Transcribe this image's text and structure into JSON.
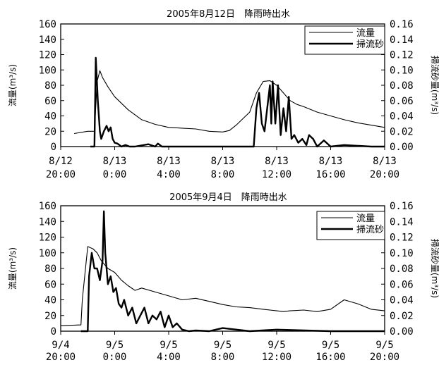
{
  "chart_data": [
    {
      "type": "line",
      "title": "2005年8月12日　降雨時出水",
      "xlabel": "",
      "ylabel": "流量(m³/s)",
      "y2label": "掃流砂量(m³/s)",
      "x_tick_labels": [
        {
          "date": "8/12",
          "time": "20:00"
        },
        {
          "date": "8/13",
          "time": "0:00"
        },
        {
          "date": "8/13",
          "time": "4:00"
        },
        {
          "date": "8/13",
          "time": "8:00"
        },
        {
          "date": "8/13",
          "time": "12:00"
        },
        {
          "date": "8/13",
          "time": "16:00"
        },
        {
          "date": "8/13",
          "time": "20:00"
        }
      ],
      "xlim_hours": [
        0,
        24
      ],
      "ylim": [
        0,
        160
      ],
      "y_ticks": [
        0,
        20,
        40,
        60,
        80,
        100,
        120,
        140,
        160
      ],
      "y2lim": [
        0,
        0.16
      ],
      "y2_ticks": [
        "0.00",
        "0.02",
        "0.04",
        "0.06",
        "0.08",
        "0.10",
        "0.12",
        "0.14",
        "0.16"
      ],
      "legend": {
        "position": "top-right",
        "entries": [
          "流量",
          "掃流砂"
        ]
      },
      "grid": false,
      "series": [
        {
          "name": "流量",
          "axis": "left",
          "x": [
            1.0,
            2.0,
            2.5,
            2.7,
            2.9,
            3.1,
            3.5,
            4.0,
            5.0,
            6.0,
            7.0,
            8.0,
            9.0,
            10.0,
            11.0,
            12.0,
            12.5,
            13.0,
            14.0,
            14.5,
            15.0,
            15.5,
            16.0,
            16.5,
            17.0,
            17.5,
            18.0,
            19.0,
            20.0,
            21.0,
            22.0,
            23.0,
            24.0
          ],
          "values": [
            17,
            20,
            20,
            85,
            99,
            90,
            78,
            65,
            48,
            35,
            29,
            25,
            24,
            23,
            20,
            19,
            21,
            28,
            45,
            70,
            85,
            86,
            80,
            70,
            60,
            55,
            52,
            45,
            40,
            35,
            31,
            28,
            25
          ]
        },
        {
          "name": "掃流砂",
          "axis": "right",
          "x": [
            2.2,
            2.5,
            2.6,
            2.75,
            2.9,
            3.0,
            3.2,
            3.4,
            3.55,
            3.7,
            3.85,
            4.0,
            4.2,
            4.5,
            4.8,
            5.1,
            5.5,
            6.5,
            7.0,
            7.2,
            7.5,
            12.5,
            14.3,
            14.5,
            14.7,
            14.9,
            15.1,
            15.3,
            15.5,
            15.6,
            15.7,
            15.9,
            16.1,
            16.3,
            16.5,
            16.7,
            16.9,
            17.1,
            17.3,
            17.6,
            17.9,
            18.2,
            18.4,
            18.7,
            19.0,
            19.5,
            20.0,
            21.0,
            23.0,
            24.0
          ],
          "values": [
            0,
            0,
            0.116,
            0.06,
            0.02,
            0.01,
            0.02,
            0.027,
            0.02,
            0.025,
            0.01,
            0.005,
            0.004,
            0.0,
            0.002,
            0.0,
            0.0,
            0.003,
            0.0,
            0.004,
            0.0,
            0.0,
            0.0,
            0.05,
            0.07,
            0.03,
            0.02,
            0.05,
            0.08,
            0.03,
            0.085,
            0.03,
            0.08,
            0.015,
            0.05,
            0.02,
            0.065,
            0.01,
            0.015,
            0.005,
            0.01,
            0.002,
            0.015,
            0.01,
            0.0,
            0.008,
            0.0,
            0.002,
            0.0,
            0.0
          ]
        }
      ]
    },
    {
      "type": "line",
      "title": "2005年9月4日　降雨時出水",
      "xlabel": "",
      "ylabel": "流量(m³/s)",
      "y2label": "掃流砂量(m³/s)",
      "x_tick_labels": [
        {
          "date": "9/4",
          "time": "20:00"
        },
        {
          "date": "9/5",
          "time": "0:00"
        },
        {
          "date": "9/5",
          "time": "4:00"
        },
        {
          "date": "9/5",
          "time": "8:00"
        },
        {
          "date": "9/5",
          "time": "12:00"
        },
        {
          "date": "9/5",
          "time": "16:00"
        },
        {
          "date": "9/5",
          "time": "20:00"
        }
      ],
      "xlim_hours": [
        0,
        24
      ],
      "ylim": [
        0,
        160
      ],
      "y_ticks": [
        0,
        20,
        40,
        60,
        80,
        100,
        120,
        140,
        160
      ],
      "y2lim": [
        0,
        0.16
      ],
      "y2_ticks": [
        "0.00",
        "0.02",
        "0.04",
        "0.06",
        "0.08",
        "0.10",
        "0.12",
        "0.14",
        "0.16"
      ],
      "legend": {
        "position": "top-right",
        "entries": [
          "流量",
          "掃流砂"
        ]
      },
      "grid": false,
      "series": [
        {
          "name": "流量",
          "axis": "left",
          "x": [
            0.0,
            1.5,
            1.6,
            2.0,
            2.4,
            2.7,
            3.0,
            3.5,
            4.0,
            4.5,
            5.0,
            5.5,
            6.0,
            7.0,
            8.0,
            9.0,
            10.0,
            11.0,
            12.0,
            13.0,
            14.0,
            15.0,
            15.5,
            16.0,
            16.5,
            17.0,
            18.0,
            19.0,
            20.0,
            21.0,
            22.0,
            23.0,
            24.0
          ],
          "values": [
            7,
            8,
            40,
            108,
            105,
            100,
            90,
            80,
            75,
            65,
            58,
            52,
            55,
            50,
            45,
            40,
            42,
            38,
            34,
            31,
            30,
            28,
            27,
            26,
            25,
            26,
            27,
            25,
            28,
            40,
            35,
            28,
            26
          ]
        },
        {
          "name": "掃流砂",
          "axis": "right",
          "x": [
            1.5,
            2.0,
            2.1,
            2.3,
            2.5,
            2.7,
            2.9,
            3.1,
            3.2,
            3.3,
            3.5,
            3.7,
            3.9,
            4.1,
            4.3,
            4.5,
            4.7,
            5.0,
            5.3,
            5.6,
            5.9,
            6.2,
            6.5,
            6.8,
            7.1,
            7.4,
            7.7,
            8.0,
            8.3,
            8.6,
            9.0,
            9.5,
            10.0,
            11.0,
            12.0,
            14.0,
            16.0,
            20.0,
            24.0
          ],
          "values": [
            0,
            0,
            0.07,
            0.1,
            0.08,
            0.08,
            0.065,
            0.09,
            0.153,
            0.1,
            0.06,
            0.07,
            0.05,
            0.055,
            0.035,
            0.03,
            0.04,
            0.02,
            0.03,
            0.01,
            0.02,
            0.03,
            0.01,
            0.02,
            0.015,
            0.025,
            0.005,
            0.02,
            0.005,
            0.01,
            0.002,
            0.0,
            0.001,
            0.0,
            0.004,
            0.0,
            0.002,
            0.0,
            0.0
          ]
        }
      ]
    }
  ]
}
